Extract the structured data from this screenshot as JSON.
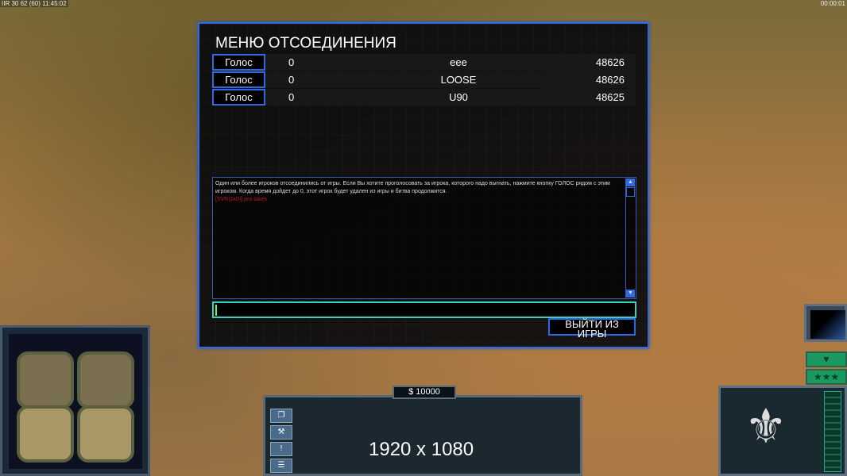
{
  "hud": {
    "top_left": "IIR 30 62 (60) 11:45:02",
    "top_right": "00:00:01"
  },
  "dialog": {
    "title": "МЕНЮ ОТСОЕДИНЕНИЯ",
    "players": [
      {
        "vote_label": "Голос",
        "votes": "0",
        "name": "eee",
        "ping": "48626"
      },
      {
        "vote_label": "Голос",
        "votes": "0",
        "name": "LOOSE",
        "ping": "48626"
      },
      {
        "vote_label": "Голос",
        "votes": "0",
        "name": "U90",
        "ping": "48625"
      }
    ],
    "message": "Один или более игроков отсоединились от игры. Если Вы хотите проголосовать за игрока, которого надо выгнать, нажмите кнопку ГОЛОС рядом с этим игроком. Когда время дойдет до 0, этот игрок будет удален из игры и битва продолжится.",
    "chat_line": "[SVR(2x0)] pro takes",
    "chat_input": "",
    "quit_label": "ВЫЙТИ ИЗ ИГРЫ"
  },
  "command_bar": {
    "money": "$ 10000",
    "resolution": "1920 x 1080"
  },
  "colors": {
    "accent": "#2f6ae0",
    "input_border": "#3ad0c0",
    "chat_red": "#c01818"
  }
}
